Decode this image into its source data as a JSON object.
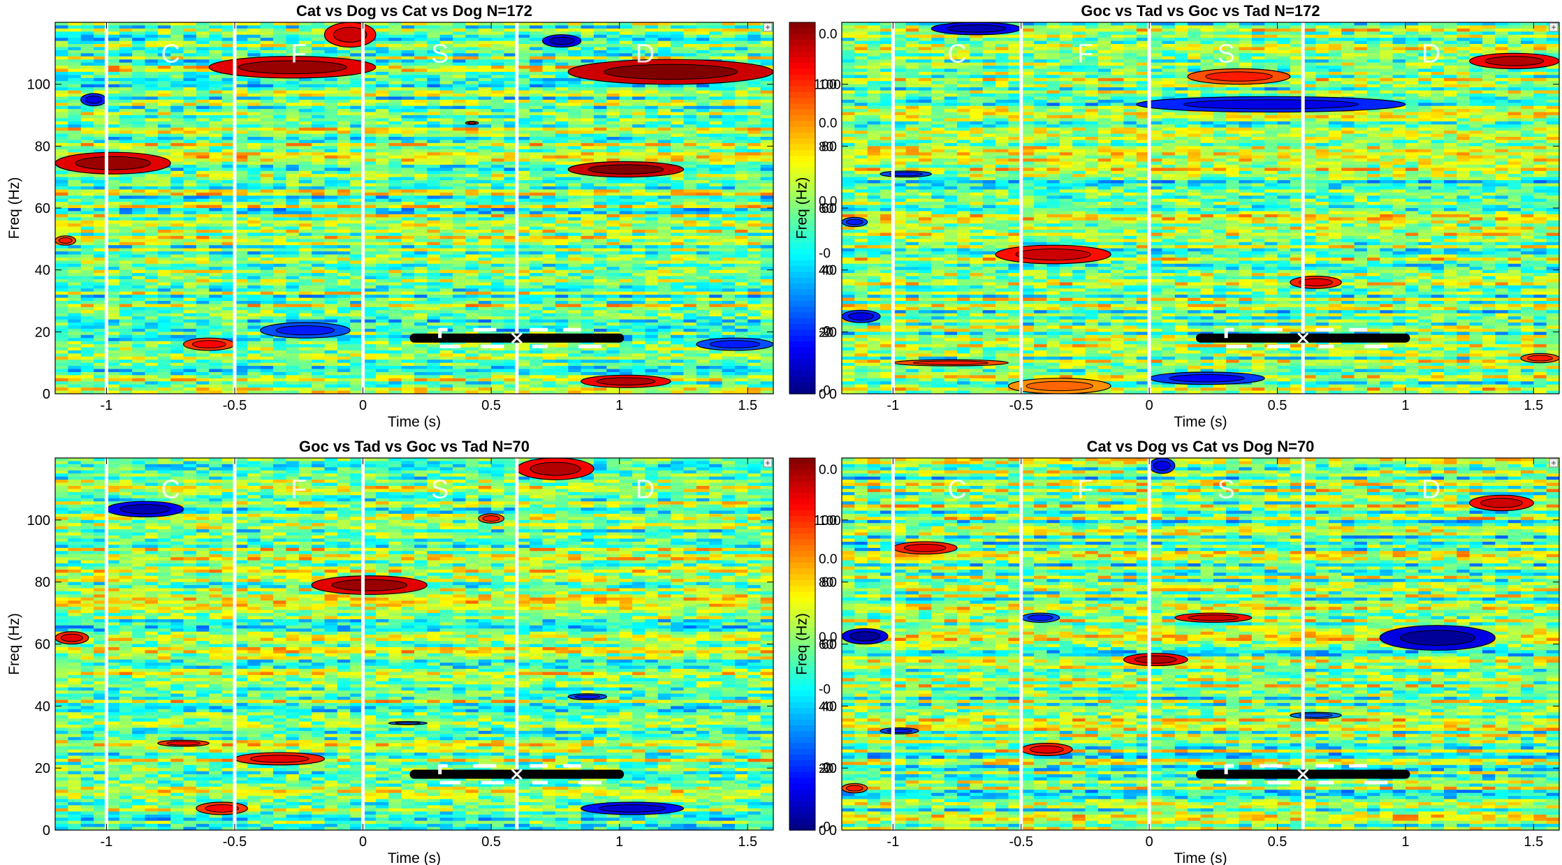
{
  "chart_data": [
    {
      "type": "heatmap",
      "title": "Cat vs Dog vs Cat vs Dog N=172",
      "xlabel": "Time (s)",
      "ylabel": "Freq (Hz)",
      "xlim": [
        -1.2,
        1.6
      ],
      "ylim": [
        0,
        120
      ],
      "x_ticks": [
        -1,
        -0.5,
        0,
        0.5,
        1,
        1.5
      ],
      "x_tick_labels": [
        "-1",
        "-0.5",
        "0",
        "0.5",
        "1",
        "1.5"
      ],
      "y_ticks": [
        0,
        20,
        40,
        60,
        80,
        100
      ],
      "y_tick_labels": [
        "0",
        "20",
        "40",
        "60",
        "80",
        "100"
      ],
      "event_lines": [
        -1,
        -0.5,
        0,
        0.6
      ],
      "event_labels": [
        {
          "text": "C",
          "t": -0.75
        },
        {
          "text": "F",
          "t": -0.25
        },
        {
          "text": "S",
          "t": 0.3
        },
        {
          "text": "D",
          "t": 1.1
        }
      ],
      "bar": {
        "t_start": 0.2,
        "t_end": 1.0,
        "freq": 18,
        "marker_t": 0.6
      },
      "clusters": [
        {
          "t0": -0.15,
          "t1": 0.05,
          "f0": 112,
          "f1": 120,
          "v": 0.85
        },
        {
          "t0": -0.6,
          "t1": 0.05,
          "f0": 102,
          "f1": 109,
          "v": 0.95
        },
        {
          "t0": 0.8,
          "t1": 1.6,
          "f0": 100,
          "f1": 108,
          "v": 1.0
        },
        {
          "t0": -1.2,
          "t1": -0.75,
          "f0": 71,
          "f1": 78,
          "v": 0.95
        },
        {
          "t0": 0.8,
          "t1": 1.25,
          "f0": 70,
          "f1": 75,
          "v": 1.0
        },
        {
          "t0": 0.85,
          "t1": 1.2,
          "f0": 2,
          "f1": 6,
          "v": 0.9
        },
        {
          "t0": -0.7,
          "t1": -0.5,
          "f0": 14,
          "f1": 18,
          "v": 0.75
        },
        {
          "t0": -0.4,
          "t1": -0.05,
          "f0": 18,
          "f1": 23,
          "v": -0.7
        },
        {
          "t0": -1.1,
          "t1": -1.0,
          "f0": 93,
          "f1": 97,
          "v": -0.8
        },
        {
          "t0": 0.7,
          "t1": 0.85,
          "f0": 112,
          "f1": 116,
          "v": -0.9
        },
        {
          "t0": 0.4,
          "t1": 0.45,
          "f0": 87,
          "f1": 88,
          "v": 0.7
        },
        {
          "t0": 1.3,
          "t1": 1.6,
          "f0": 14,
          "f1": 18,
          "v": -0.7
        },
        {
          "t0": -1.2,
          "t1": -1.12,
          "f0": 48,
          "f1": 51,
          "v": 0.7
        }
      ]
    },
    {
      "type": "heatmap",
      "title": "Goc vs Tad vs Goc vs Tad N=172",
      "xlabel": "Time (s)",
      "ylabel": "Freq (Hz)",
      "xlim": [
        -1.2,
        1.6
      ],
      "ylim": [
        0,
        120
      ],
      "x_ticks": [
        -1,
        -0.5,
        0,
        0.5,
        1,
        1.5
      ],
      "x_tick_labels": [
        "-1",
        "-0.5",
        "0",
        "0.5",
        "1",
        "1.5"
      ],
      "y_ticks": [
        0,
        20,
        40,
        60,
        80,
        100
      ],
      "y_tick_labels": [
        "0",
        "20",
        "40",
        "60",
        "80",
        "100"
      ],
      "event_lines": [
        -1,
        -0.5,
        0,
        0.6
      ],
      "event_labels": [
        {
          "text": "C",
          "t": -0.75
        },
        {
          "text": "F",
          "t": -0.25
        },
        {
          "text": "S",
          "t": 0.3
        },
        {
          "text": "D",
          "t": 1.1
        }
      ],
      "bar": {
        "t_start": 0.2,
        "t_end": 1.0,
        "freq": 18,
        "marker_t": 0.6
      },
      "clusters": [
        {
          "t0": -0.85,
          "t1": -0.5,
          "f0": 116,
          "f1": 120,
          "v": -0.9
        },
        {
          "t0": 0.15,
          "t1": 0.55,
          "f0": 100,
          "f1": 105,
          "v": 0.7
        },
        {
          "t0": 1.25,
          "t1": 1.6,
          "f0": 105,
          "f1": 110,
          "v": 0.9
        },
        {
          "t0": -0.05,
          "t1": 1.0,
          "f0": 91,
          "f1": 96,
          "v": -0.8
        },
        {
          "t0": -0.6,
          "t1": -0.15,
          "f0": 42,
          "f1": 48,
          "v": 0.85
        },
        {
          "t0": -1.05,
          "t1": -0.85,
          "f0": 70,
          "f1": 72,
          "v": -0.7
        },
        {
          "t0": -1.2,
          "t1": -1.05,
          "f0": 23,
          "f1": 27,
          "v": -0.8
        },
        {
          "t0": 0.0,
          "t1": 0.45,
          "f0": 3,
          "f1": 7,
          "v": -0.75
        },
        {
          "t0": -0.55,
          "t1": -0.15,
          "f0": 0,
          "f1": 5,
          "v": 0.55
        },
        {
          "t0": -1.0,
          "t1": -0.55,
          "f0": 9,
          "f1": 11,
          "v": 0.7
        },
        {
          "t0": 0.55,
          "t1": 0.75,
          "f0": 34,
          "f1": 38,
          "v": 0.8
        },
        {
          "t0": 1.45,
          "t1": 1.6,
          "f0": 10,
          "f1": 13,
          "v": 0.7
        },
        {
          "t0": -1.2,
          "t1": -1.1,
          "f0": 54,
          "f1": 57,
          "v": -0.7
        }
      ]
    },
    {
      "type": "heatmap",
      "title": "Goc vs Tad vs Goc vs Tad N=70",
      "xlabel": "Time (s)",
      "ylabel": "Freq (Hz)",
      "xlim": [
        -1.2,
        1.6
      ],
      "ylim": [
        0,
        120
      ],
      "x_ticks": [
        -1,
        -0.5,
        0,
        0.5,
        1,
        1.5
      ],
      "x_tick_labels": [
        "-1",
        "-0.5",
        "0",
        "0.5",
        "1",
        "1.5"
      ],
      "y_ticks": [
        0,
        20,
        40,
        60,
        80,
        100
      ],
      "y_tick_labels": [
        "0",
        "20",
        "40",
        "60",
        "80",
        "100"
      ],
      "event_lines": [
        -1,
        -0.5,
        0,
        0.6
      ],
      "event_labels": [
        {
          "text": "C",
          "t": -0.75
        },
        {
          "text": "F",
          "t": -0.25
        },
        {
          "text": "S",
          "t": 0.3
        },
        {
          "text": "D",
          "t": 1.1
        }
      ],
      "bar": {
        "t_start": 0.2,
        "t_end": 1.0,
        "freq": 18,
        "marker_t": 0.6
      },
      "clusters": [
        {
          "t0": 0.6,
          "t1": 0.9,
          "f0": 113,
          "f1": 120,
          "v": 0.9
        },
        {
          "t0": -1.0,
          "t1": -0.7,
          "f0": 101,
          "f1": 106,
          "v": -0.9
        },
        {
          "t0": -0.2,
          "t1": 0.25,
          "f0": 76,
          "f1": 82,
          "v": 0.95
        },
        {
          "t0": -1.2,
          "t1": -1.07,
          "f0": 60,
          "f1": 64,
          "v": 0.8
        },
        {
          "t0": -0.8,
          "t1": -0.6,
          "f0": 27,
          "f1": 29,
          "v": 0.75
        },
        {
          "t0": -0.5,
          "t1": -0.15,
          "f0": 21,
          "f1": 25,
          "v": 0.8
        },
        {
          "t0": -0.65,
          "t1": -0.45,
          "f0": 5,
          "f1": 9,
          "v": 0.75
        },
        {
          "t0": 0.85,
          "t1": 1.25,
          "f0": 5,
          "f1": 9,
          "v": -0.85
        },
        {
          "t0": 0.8,
          "t1": 0.95,
          "f0": 42,
          "f1": 44,
          "v": -0.7
        },
        {
          "t0": 0.45,
          "t1": 0.55,
          "f0": 99,
          "f1": 102,
          "v": 0.7
        },
        {
          "t0": 0.1,
          "t1": 0.25,
          "f0": 34,
          "f1": 35,
          "v": -0.6
        }
      ]
    },
    {
      "type": "heatmap",
      "title": "Cat vs Dog vs Cat vs Dog N=70",
      "xlabel": "Time (s)",
      "ylabel": "Freq (Hz)",
      "xlim": [
        -1.2,
        1.6
      ],
      "ylim": [
        0,
        120
      ],
      "x_ticks": [
        -1,
        -0.5,
        0,
        0.5,
        1,
        1.5
      ],
      "x_tick_labels": [
        "-1",
        "-0.5",
        "0",
        "0.5",
        "1",
        "1.5"
      ],
      "y_ticks": [
        0,
        20,
        40,
        60,
        80,
        100
      ],
      "y_tick_labels": [
        "0",
        "20",
        "40",
        "60",
        "80",
        "100"
      ],
      "event_lines": [
        -1,
        -0.5,
        0,
        0.6
      ],
      "event_labels": [
        {
          "text": "C",
          "t": -0.75
        },
        {
          "text": "F",
          "t": -0.25
        },
        {
          "text": "S",
          "t": 0.3
        },
        {
          "text": "D",
          "t": 1.1
        }
      ],
      "bar": {
        "t_start": 0.2,
        "t_end": 1.0,
        "freq": 18,
        "marker_t": 0.6
      },
      "clusters": [
        {
          "t0": -1.2,
          "t1": -1.02,
          "f0": 60,
          "f1": 65,
          "v": -0.95
        },
        {
          "t0": 0.9,
          "t1": 1.35,
          "f0": 58,
          "f1": 66,
          "v": -0.95
        },
        {
          "t0": -1.0,
          "t1": -0.75,
          "f0": 89,
          "f1": 93,
          "v": 0.8
        },
        {
          "t0": 0.1,
          "t1": 0.4,
          "f0": 67,
          "f1": 70,
          "v": 0.85
        },
        {
          "t0": -0.1,
          "t1": 0.15,
          "f0": 53,
          "f1": 57,
          "v": 0.9
        },
        {
          "t0": 1.25,
          "t1": 1.5,
          "f0": 103,
          "f1": 108,
          "v": 0.85
        },
        {
          "t0": 0.0,
          "t1": 0.1,
          "f0": 115,
          "f1": 120,
          "v": -0.8
        },
        {
          "t0": -0.5,
          "t1": -0.3,
          "f0": 24,
          "f1": 28,
          "v": 0.8
        },
        {
          "t0": -0.5,
          "t1": -0.35,
          "f0": 67,
          "f1": 70,
          "v": -0.7
        },
        {
          "t0": -1.2,
          "t1": -1.1,
          "f0": 12,
          "f1": 15,
          "v": 0.7
        },
        {
          "t0": -1.05,
          "t1": -0.9,
          "f0": 31,
          "f1": 33,
          "v": -0.7
        },
        {
          "t0": 0.55,
          "t1": 0.75,
          "f0": 36,
          "f1": 38,
          "v": -0.6
        }
      ]
    }
  ],
  "colorbars": [
    {
      "attached_to": 1,
      "labels": [
        "0.0",
        "100",
        "0.0",
        "80",
        "0.0",
        "60",
        "-0",
        "40",
        "-0",
        "20",
        "-0",
        "0"
      ]
    },
    {
      "attached_to": 3,
      "labels": [
        "0.0",
        "100",
        "0.0",
        "80",
        "0.0",
        "60",
        "-0",
        "40",
        "-0",
        "20",
        "-0",
        "0"
      ]
    }
  ],
  "colorbar_axis_label": "Freq (Hz)",
  "corner_button_label": "+"
}
